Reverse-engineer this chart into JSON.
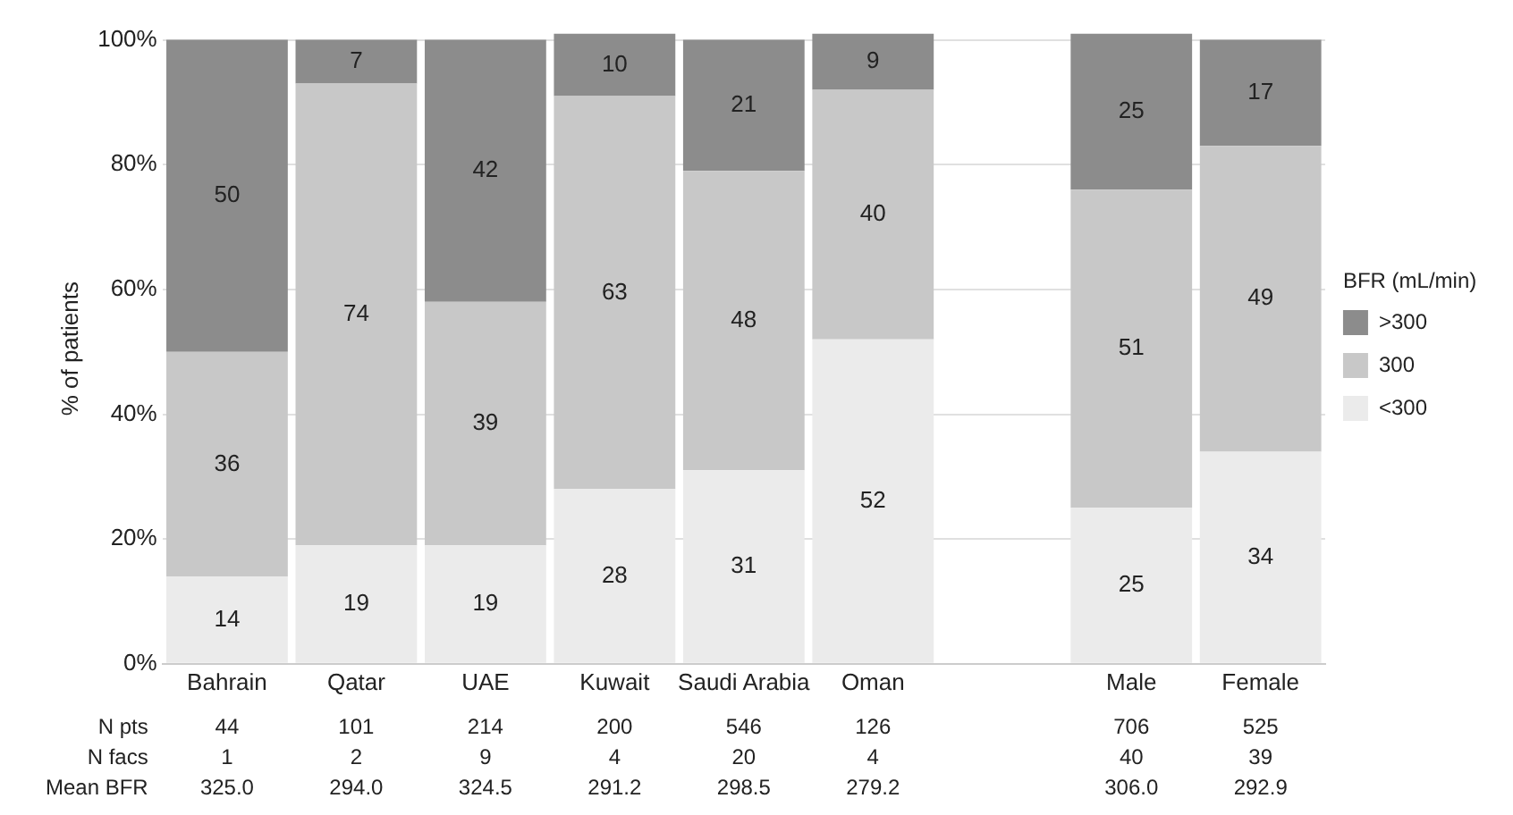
{
  "chart_data": {
    "type": "bar",
    "stacked": true,
    "ylabel": "% of patients",
    "legend_title": "BFR (mL/min)",
    "legend": "right",
    "categories": [
      "Bahrain",
      "Qatar",
      "UAE",
      "Kuwait",
      "Saudi Arabia",
      "Oman",
      null,
      "Male",
      "Female"
    ],
    "series": [
      {
        "name": "<300",
        "color": "#ebebeb",
        "values": [
          14,
          19,
          19,
          28,
          31,
          52,
          null,
          25,
          34
        ]
      },
      {
        "name": "300",
        "color": "#c8c8c8",
        "values": [
          36,
          74,
          39,
          63,
          48,
          40,
          null,
          51,
          49
        ]
      },
      {
        "name": ">300",
        "color": "#8c8c8c",
        "values": [
          50,
          7,
          42,
          10,
          21,
          9,
          null,
          25,
          17
        ]
      }
    ],
    "ylim": [
      0,
      101
    ],
    "yticks": [
      {
        "value": 0,
        "label": "0%"
      },
      {
        "value": 20,
        "label": "20%"
      },
      {
        "value": 40,
        "label": "40%"
      },
      {
        "value": 60,
        "label": "60%"
      },
      {
        "value": 80,
        "label": "80%"
      },
      {
        "value": 100,
        "label": "100%"
      }
    ],
    "grid": "y",
    "data_labels": true,
    "annotations": [
      "N pts",
      "44",
      "101",
      "214",
      "200",
      "546",
      "126",
      "706",
      "525",
      "N facs",
      "1",
      "2",
      "9",
      "4",
      "20",
      "4",
      "40",
      "39",
      "Mean BFR",
      "325.0",
      "294.0",
      "324.5",
      "291.2",
      "298.5",
      "279.2",
      "306.0",
      "292.9"
    ]
  }
}
